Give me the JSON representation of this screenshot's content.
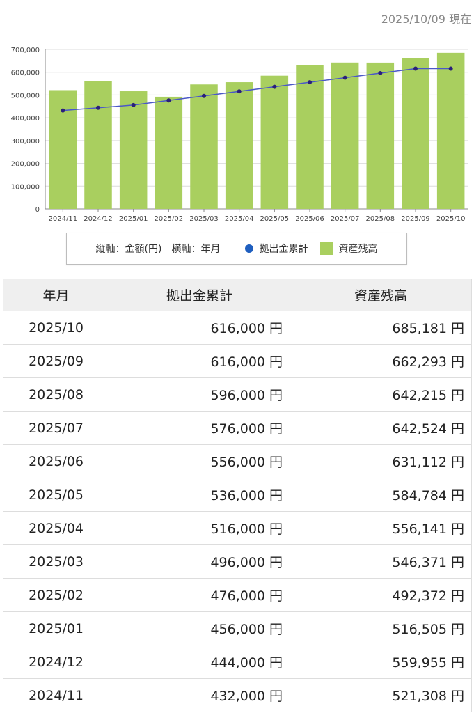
{
  "as_of": "2025/10/09 現在",
  "chart_data": {
    "type": "bar",
    "categories": [
      "2024/11",
      "2024/12",
      "2025/01",
      "2025/02",
      "2025/03",
      "2025/04",
      "2025/05",
      "2025/06",
      "2025/07",
      "2025/08",
      "2025/09",
      "2025/10"
    ],
    "series": [
      {
        "name": "資産残高",
        "kind": "bar",
        "color": "#a9cf5f",
        "values": [
          521308,
          559955,
          516505,
          492372,
          546371,
          556141,
          584784,
          631112,
          642524,
          642215,
          662293,
          685181
        ]
      },
      {
        "name": "拠出金累計",
        "kind": "line",
        "color": "#4a58c8",
        "marker_color": "#2a1f7a",
        "values": [
          432000,
          444000,
          456000,
          476000,
          496000,
          516000,
          536000,
          556000,
          576000,
          596000,
          616000,
          616000
        ]
      }
    ],
    "yticks": [
      "0",
      "100,000",
      "200,000",
      "300,000",
      "400,000",
      "500,000",
      "600,000",
      "700,000"
    ],
    "ylim": [
      0,
      700000
    ],
    "grid": true
  },
  "legend": {
    "axis_note": "縦軸：金額(円)　横軸：年月",
    "line_label": "拠出金累計",
    "bar_label": "資産残高"
  },
  "table": {
    "headers": [
      "年月",
      "拠出金累計",
      "資産残高"
    ],
    "unit": "円",
    "rows": [
      [
        "2025/10",
        "616,000",
        "685,181"
      ],
      [
        "2025/09",
        "616,000",
        "662,293"
      ],
      [
        "2025/08",
        "596,000",
        "642,215"
      ],
      [
        "2025/07",
        "576,000",
        "642,524"
      ],
      [
        "2025/06",
        "556,000",
        "631,112"
      ],
      [
        "2025/05",
        "536,000",
        "584,784"
      ],
      [
        "2025/04",
        "516,000",
        "556,141"
      ],
      [
        "2025/03",
        "496,000",
        "546,371"
      ],
      [
        "2025/02",
        "476,000",
        "492,372"
      ],
      [
        "2025/01",
        "456,000",
        "516,505"
      ],
      [
        "2024/12",
        "444,000",
        "559,955"
      ],
      [
        "2024/11",
        "432,000",
        "521,308"
      ]
    ]
  }
}
